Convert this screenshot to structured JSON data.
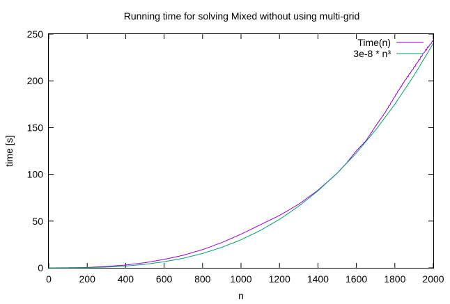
{
  "chart_data": {
    "type": "line",
    "title": "Running time for solving Mixed without using multi-grid",
    "xlabel": "n",
    "ylabel": "time [s]",
    "xlim": [
      0,
      2000
    ],
    "ylim": [
      0,
      250
    ],
    "x_ticks": [
      "0",
      "200",
      "400",
      "600",
      "800",
      "1000",
      "1200",
      "1400",
      "1600",
      "1800",
      "2000"
    ],
    "y_ticks": [
      "0",
      "50",
      "100",
      "150",
      "200",
      "250"
    ],
    "grid": false,
    "legend_position": "top-right",
    "series": [
      {
        "name": "Time(n)",
        "color": "#9400d3",
        "style": "noisy-line",
        "x": [
          0,
          100,
          200,
          300,
          400,
          500,
          600,
          700,
          800,
          900,
          1000,
          1100,
          1200,
          1300,
          1400,
          1500,
          1550,
          1600,
          1650,
          1700,
          1750,
          1800,
          1850,
          1900,
          1950,
          2000
        ],
        "y": [
          0,
          0.1,
          0.4,
          1.5,
          3,
          5.5,
          9,
          13.5,
          19.5,
          27,
          36,
          46,
          56,
          68,
          83,
          101,
          112,
          125,
          136,
          152,
          167,
          184,
          200,
          214,
          229,
          242
        ]
      },
      {
        "name": "3e-8 * n³",
        "color": "#009e73",
        "style": "smooth",
        "x": [
          0,
          100,
          200,
          300,
          400,
          500,
          600,
          700,
          800,
          900,
          1000,
          1100,
          1200,
          1300,
          1400,
          1500,
          1600,
          1700,
          1800,
          1900,
          2000
        ],
        "y": [
          0,
          0.03,
          0.24,
          0.81,
          1.92,
          3.75,
          6.48,
          10.29,
          15.36,
          21.87,
          30,
          39.93,
          51.84,
          65.91,
          82.32,
          101.25,
          122.88,
          147.39,
          174.96,
          205.77,
          240
        ]
      }
    ]
  }
}
